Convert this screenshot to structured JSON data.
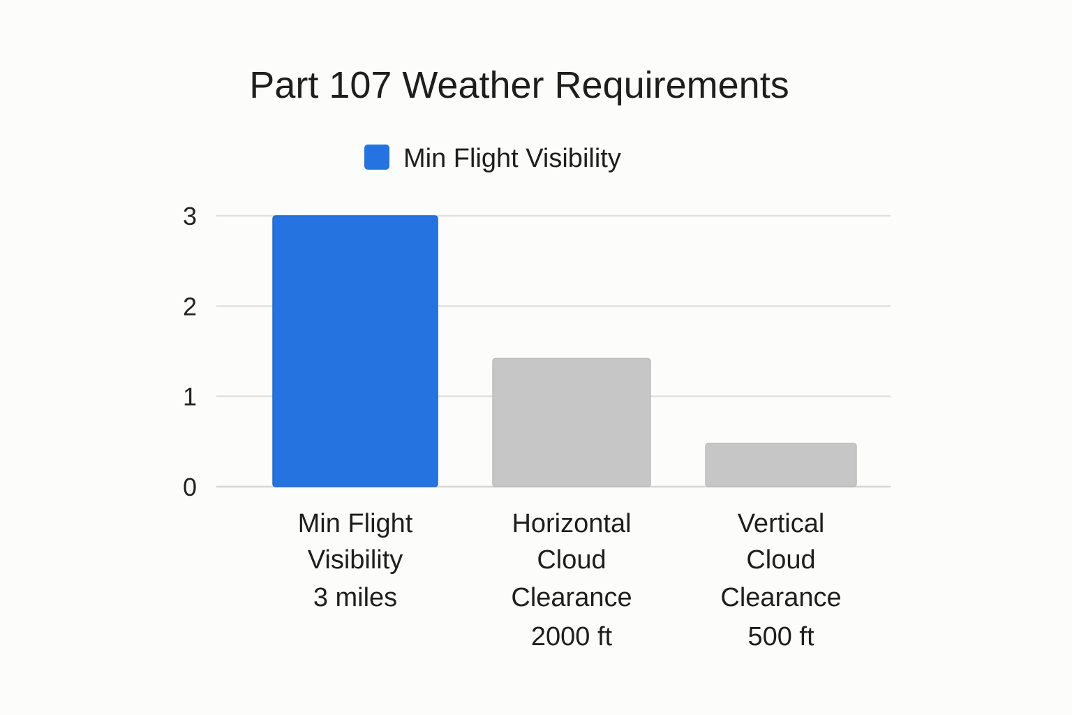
{
  "chart_data": {
    "type": "bar",
    "title": "Part 107 Weather Requirements",
    "legend": [
      {
        "label": "Min Flight Visibility",
        "color": "#2473e0"
      }
    ],
    "legend_position": "top-center",
    "categories": [
      [
        "Min Flight",
        "Visibility",
        "3 miles"
      ],
      [
        "Horizontal",
        "Cloud",
        "Clearance",
        "2000 ft"
      ],
      [
        "Vertical",
        "Cloud",
        "Clearance",
        "500 ft"
      ]
    ],
    "values": [
      3,
      1.42,
      0.48
    ],
    "bar_colors": [
      "#2473e0",
      "#c6c6c6",
      "#c6c6c6"
    ],
    "ylim": [
      0,
      3
    ],
    "yticks": [
      0,
      1,
      2,
      3
    ],
    "grid": true,
    "xlabel": "",
    "ylabel": ""
  }
}
